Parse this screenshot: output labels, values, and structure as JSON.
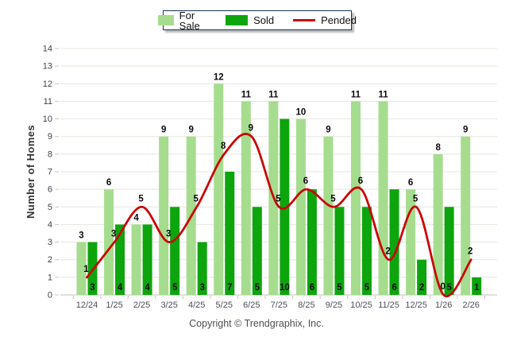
{
  "footer": {
    "copyright": "Copyright © Trendgraphix, Inc."
  },
  "chart_data": {
    "type": "bar",
    "subtype": "grouped-bars-with-line-overlay",
    "title": "",
    "xlabel": "",
    "ylabel": "Number of Homes",
    "ylim": [
      0,
      14
    ],
    "yticks": [
      0,
      1,
      2,
      3,
      4,
      5,
      6,
      7,
      8,
      9,
      10,
      11,
      12,
      13,
      14
    ],
    "grid": true,
    "value_labels": true,
    "legend_position": "top-center",
    "categories": [
      "12/24",
      "1/25",
      "2/25",
      "3/25",
      "4/25",
      "5/25",
      "6/25",
      "7/25",
      "8/25",
      "9/25",
      "10/25",
      "11/25",
      "12/25",
      "1/26",
      "2/26"
    ],
    "series": [
      {
        "name": "For Sale",
        "type": "bar",
        "color": "#A6DC8E",
        "values": [
          3,
          6,
          4,
          9,
          9,
          12,
          11,
          11,
          10,
          9,
          11,
          11,
          6,
          8,
          9
        ]
      },
      {
        "name": "Sold",
        "type": "bar",
        "color": "#0DA50D",
        "values": [
          3,
          4,
          4,
          5,
          3,
          7,
          5,
          10,
          6,
          5,
          5,
          6,
          2,
          5,
          1
        ]
      },
      {
        "name": "Pended",
        "type": "line",
        "color": "#C90707",
        "values": [
          1,
          3,
          5,
          3,
          5,
          8,
          9,
          5,
          6,
          5,
          6,
          2,
          5,
          0,
          2
        ]
      }
    ]
  }
}
